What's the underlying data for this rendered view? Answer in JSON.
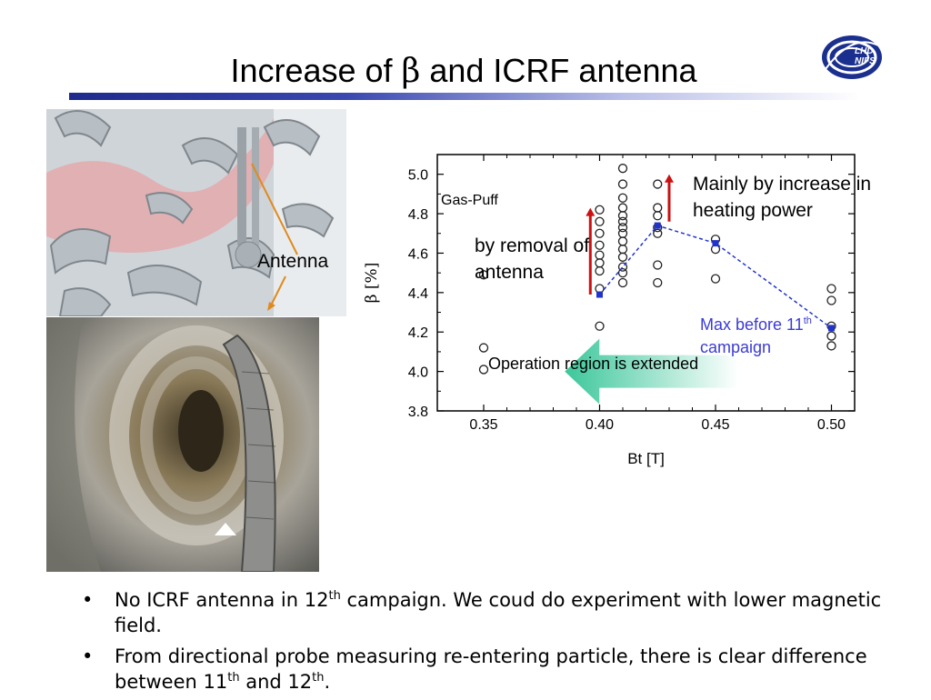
{
  "slide": {
    "title_prefix": "Increase of ",
    "title_symbol": "β",
    "title_suffix": " and ICRF antenna",
    "logo_text": "LHD NIFS",
    "colors": {
      "title_bar": "#1e2a8c",
      "arrow_red": "#cc1111",
      "fit_line": "#2233cc",
      "max_text": "#3b3bd6",
      "region_arrow": "#3cc79a"
    }
  },
  "images": {
    "cad_label": "Antenna",
    "top_photo_icon": "antenna-cad-render",
    "bottom_photo_icon": "lhd-vacuum-vessel-photo"
  },
  "annotations": {
    "main": "Mainly by increase in heating power",
    "removal": "by removal of antenna",
    "max_before": "Max before 11",
    "max_sup": "th",
    "max_after": "campaign",
    "operation_region": "Operation region is extended"
  },
  "chart_data": {
    "type": "scatter",
    "title": "",
    "legend_label": "Gas-Puff",
    "xlabel": "Bt [T]",
    "ylabel": "β [%]",
    "xlim": [
      0.33,
      0.51
    ],
    "ylim": [
      3.8,
      5.1
    ],
    "xticks": [
      "0.35",
      "0.40",
      "0.45",
      "0.50"
    ],
    "yticks": [
      "3.8",
      "4.0",
      "4.2",
      "4.4",
      "4.6",
      "4.8",
      "5.0"
    ],
    "points": [
      [
        0.35,
        4.49
      ],
      [
        0.35,
        4.12
      ],
      [
        0.35,
        4.01
      ],
      [
        0.4,
        4.82
      ],
      [
        0.4,
        4.76
      ],
      [
        0.4,
        4.7
      ],
      [
        0.4,
        4.64
      ],
      [
        0.4,
        4.59
      ],
      [
        0.4,
        4.55
      ],
      [
        0.4,
        4.51
      ],
      [
        0.4,
        4.42
      ],
      [
        0.4,
        4.23
      ],
      [
        0.41,
        5.03
      ],
      [
        0.41,
        4.95
      ],
      [
        0.41,
        4.88
      ],
      [
        0.41,
        4.83
      ],
      [
        0.41,
        4.79
      ],
      [
        0.41,
        4.76
      ],
      [
        0.41,
        4.73
      ],
      [
        0.41,
        4.7
      ],
      [
        0.41,
        4.66
      ],
      [
        0.41,
        4.62
      ],
      [
        0.41,
        4.58
      ],
      [
        0.41,
        4.53
      ],
      [
        0.41,
        4.5
      ],
      [
        0.41,
        4.45
      ],
      [
        0.425,
        4.95
      ],
      [
        0.425,
        4.83
      ],
      [
        0.425,
        4.79
      ],
      [
        0.425,
        4.73
      ],
      [
        0.425,
        4.7
      ],
      [
        0.425,
        4.54
      ],
      [
        0.425,
        4.45
      ],
      [
        0.45,
        4.67
      ],
      [
        0.45,
        4.62
      ],
      [
        0.45,
        4.47
      ],
      [
        0.5,
        4.42
      ],
      [
        0.5,
        4.36
      ],
      [
        0.5,
        4.23
      ],
      [
        0.5,
        4.18
      ],
      [
        0.5,
        4.13
      ]
    ],
    "max_envelope": {
      "x": [
        0.4,
        0.425,
        0.45,
        0.5
      ],
      "y": [
        4.39,
        4.74,
        4.65,
        4.22
      ]
    },
    "up_arrows": [
      {
        "x": 0.396,
        "from": 4.39,
        "to": 4.83
      },
      {
        "x": 0.43,
        "from": 4.76,
        "to": 5.0
      }
    ],
    "legend_position": "top-left",
    "grid": false
  },
  "bullets": [
    {
      "pre": "No ICRF antenna in 12",
      "sup": "th",
      "post": " campaign. We coud do experiment with lower magnetic field."
    },
    {
      "pre": "From directional probe measuring re-entering particle, there is clear difference between 11",
      "sup": "th",
      "mid": " and 12",
      "sup2": "th",
      "post": "."
    }
  ]
}
